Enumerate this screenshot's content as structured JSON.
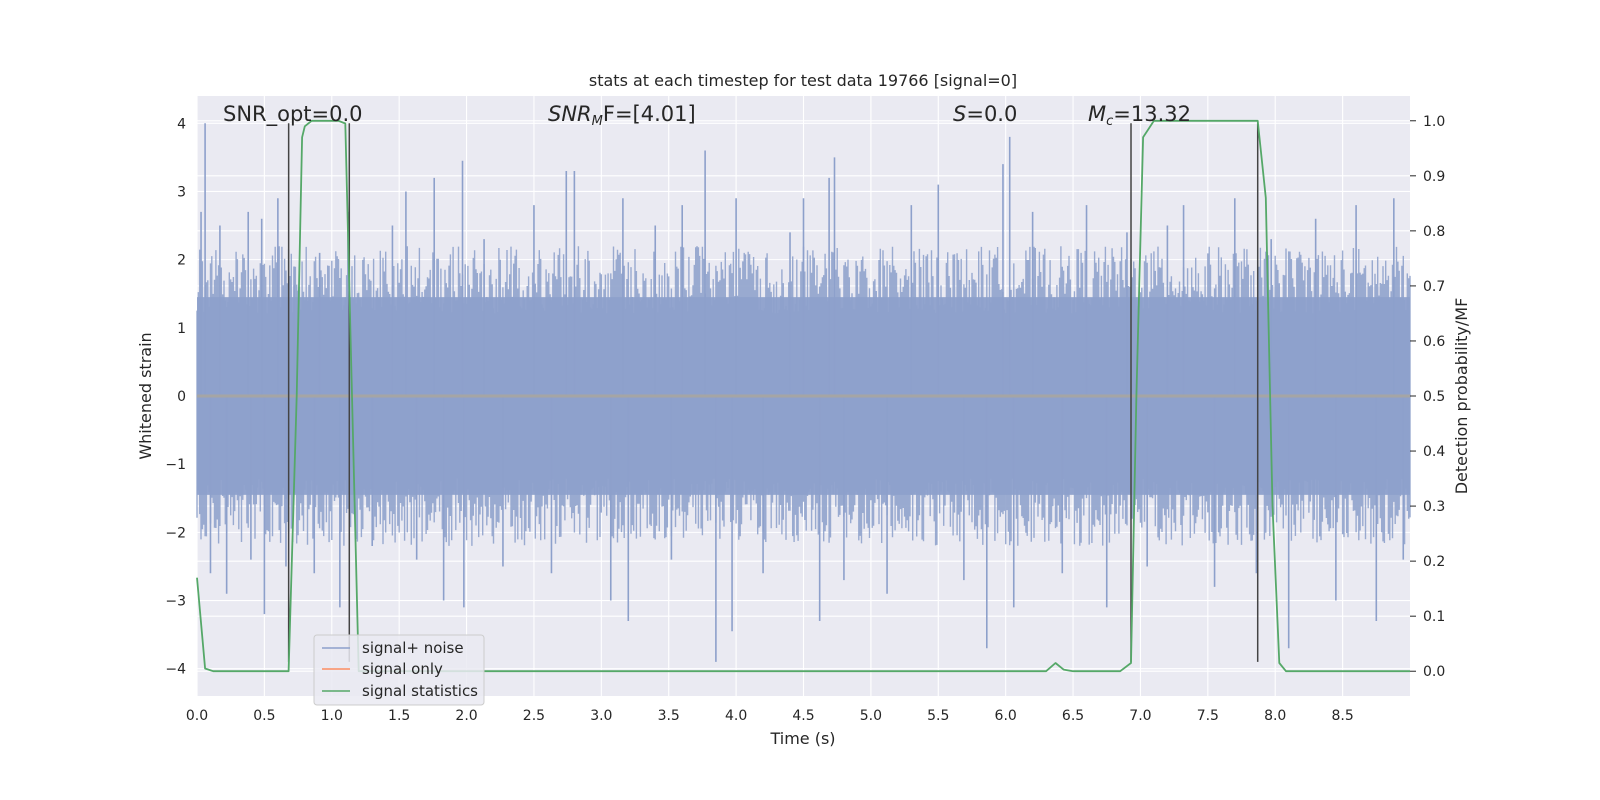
{
  "chart_data": {
    "type": "line",
    "title": "stats at each timestep for test data 19766 [signal=0]",
    "xlabel": "Time (s)",
    "ylabel": "Whitened strain",
    "ylabel_right": "Detection probability/MF",
    "xlim": [
      0.0,
      9.0
    ],
    "ylim": [
      -4.4,
      4.4
    ],
    "ylim_right": [
      -0.045,
      1.045
    ],
    "xticks": [
      0.0,
      0.5,
      1.0,
      1.5,
      2.0,
      2.5,
      3.0,
      3.5,
      4.0,
      4.5,
      5.0,
      5.5,
      6.0,
      6.5,
      7.0,
      7.5,
      8.0,
      8.5
    ],
    "xtick_labels": [
      "0.0",
      "0.5",
      "1.0",
      "1.5",
      "2.0",
      "2.5",
      "3.0",
      "3.5",
      "4.0",
      "4.5",
      "5.0",
      "5.5",
      "6.0",
      "6.5",
      "7.0",
      "7.5",
      "8.0",
      "8.5"
    ],
    "yticks": [
      4,
      3,
      2,
      1,
      0,
      -1,
      -2,
      -3,
      -4
    ],
    "ytick_labels": [
      "4",
      "3",
      "2",
      "1",
      "0",
      "−1",
      "−2",
      "−3",
      "−4"
    ],
    "yticks_right": [
      1.0,
      0.9,
      0.8,
      0.7,
      0.6,
      0.5,
      0.4,
      0.3,
      0.2,
      0.1,
      0.0
    ],
    "ytick_labels_right": [
      "1.0",
      "0.9",
      "0.8",
      "0.7",
      "0.6",
      "0.5",
      "0.4",
      "0.3",
      "0.2",
      "0.1",
      "0.0"
    ],
    "annotations": {
      "snr_opt": "SNR_opt=0.0",
      "snr_mf_base": "SNR",
      "snr_mf_sub": "M",
      "snr_mf_rest": "F=[4.01]",
      "s_base": "S",
      "s_rest": "=0.0",
      "mc_base": "M",
      "mc_sub": "c",
      "mc_rest": "=13.32"
    },
    "legend_position": "lower-left",
    "series": [
      {
        "name": "signal+ noise",
        "color": "#8da0cb",
        "axis": "left",
        "envelope_typical_max": 2.2,
        "peaks": [
          [
            0.03,
            2.7
          ],
          [
            0.06,
            4.0
          ],
          [
            0.1,
            -2.6
          ],
          [
            0.17,
            2.5
          ],
          [
            0.22,
            -2.9
          ],
          [
            0.38,
            2.7
          ],
          [
            0.4,
            -2.4
          ],
          [
            0.48,
            2.6
          ],
          [
            0.5,
            -3.2
          ],
          [
            0.6,
            2.9
          ],
          [
            0.66,
            -2.5
          ],
          [
            0.72,
            1.9
          ],
          [
            0.87,
            -2.6
          ],
          [
            0.91,
            2.1
          ],
          [
            1.06,
            -3.1
          ],
          [
            1.12,
            2.7
          ],
          [
            1.3,
            -2.2
          ],
          [
            1.45,
            2.5
          ],
          [
            1.55,
            3.0
          ],
          [
            1.63,
            -2.4
          ],
          [
            1.76,
            3.2
          ],
          [
            1.83,
            -3.0
          ],
          [
            1.97,
            3.45
          ],
          [
            1.98,
            -3.1
          ],
          [
            2.13,
            2.3
          ],
          [
            2.27,
            -2.5
          ],
          [
            2.5,
            2.8
          ],
          [
            2.63,
            -2.6
          ],
          [
            2.74,
            3.3
          ],
          [
            2.8,
            3.3
          ],
          [
            3.07,
            -3.0
          ],
          [
            3.16,
            2.9
          ],
          [
            3.2,
            -3.3
          ],
          [
            3.4,
            2.5
          ],
          [
            3.52,
            -2.4
          ],
          [
            3.6,
            2.8
          ],
          [
            3.77,
            3.6
          ],
          [
            3.85,
            -3.9
          ],
          [
            3.97,
            -3.45
          ],
          [
            4.0,
            2.9
          ],
          [
            4.2,
            -2.6
          ],
          [
            4.4,
            2.4
          ],
          [
            4.5,
            2.9
          ],
          [
            4.62,
            -3.3
          ],
          [
            4.69,
            3.2
          ],
          [
            4.73,
            3.5
          ],
          [
            4.8,
            -2.7
          ],
          [
            5.12,
            -2.9
          ],
          [
            5.3,
            2.8
          ],
          [
            5.5,
            3.1
          ],
          [
            5.69,
            -2.7
          ],
          [
            5.86,
            -3.7
          ],
          [
            5.98,
            3.4
          ],
          [
            6.03,
            3.8
          ],
          [
            6.06,
            -3.1
          ],
          [
            6.2,
            2.7
          ],
          [
            6.42,
            -2.6
          ],
          [
            6.6,
            2.8
          ],
          [
            6.75,
            -3.1
          ],
          [
            6.9,
            2.4
          ],
          [
            7.05,
            -2.5
          ],
          [
            7.2,
            2.5
          ],
          [
            7.32,
            2.8
          ],
          [
            7.55,
            -2.8
          ],
          [
            7.7,
            2.9
          ],
          [
            7.86,
            -2.6
          ],
          [
            7.97,
            2.3
          ],
          [
            8.1,
            -3.7
          ],
          [
            8.3,
            2.6
          ],
          [
            8.45,
            -3.0
          ],
          [
            8.6,
            2.8
          ],
          [
            8.75,
            -3.3
          ],
          [
            8.88,
            2.9
          ],
          [
            8.95,
            -2.4
          ]
        ]
      },
      {
        "name": "signal only",
        "color": "#fc8d62",
        "axis": "left",
        "x": [
          0.0,
          9.0
        ],
        "y": [
          0.0,
          0.0
        ]
      },
      {
        "name": "signal statistics",
        "color": "#55a868",
        "axis": "right",
        "x": [
          0.0,
          0.06,
          0.12,
          0.5,
          0.68,
          0.74,
          0.78,
          0.8,
          0.85,
          0.95,
          1.05,
          1.1,
          1.15,
          1.2,
          6.3,
          6.37,
          6.43,
          6.5,
          6.85,
          6.93,
          6.97,
          7.02,
          7.1,
          7.5,
          7.87,
          7.93,
          7.98,
          8.03,
          8.08,
          8.5,
          9.0
        ],
        "y": [
          0.17,
          0.005,
          0.0,
          0.0,
          0.0,
          0.5,
          0.97,
          0.99,
          1.0,
          1.0,
          1.0,
          0.995,
          0.5,
          0.0,
          0.0,
          0.015,
          0.003,
          0.0,
          0.0,
          0.015,
          0.5,
          0.97,
          1.0,
          1.0,
          1.0,
          0.86,
          0.3,
          0.015,
          0.0,
          0.0,
          0.0
        ]
      }
    ],
    "vlines": [
      {
        "x": 0.68,
        "ymin": -3.9,
        "ymax": 4.0,
        "color": "#444444"
      },
      {
        "x": 1.13,
        "ymin": -3.9,
        "ymax": 4.0,
        "color": "#444444"
      },
      {
        "x": 6.93,
        "ymin": -3.9,
        "ymax": 4.0,
        "color": "#444444"
      },
      {
        "x": 7.87,
        "ymin": -3.9,
        "ymax": 4.0,
        "color": "#444444"
      }
    ],
    "style": {
      "background": "#eaeaf2",
      "grid_color": "#ffffff",
      "grid": true,
      "zero_line_color": "#a5a5a5"
    }
  }
}
